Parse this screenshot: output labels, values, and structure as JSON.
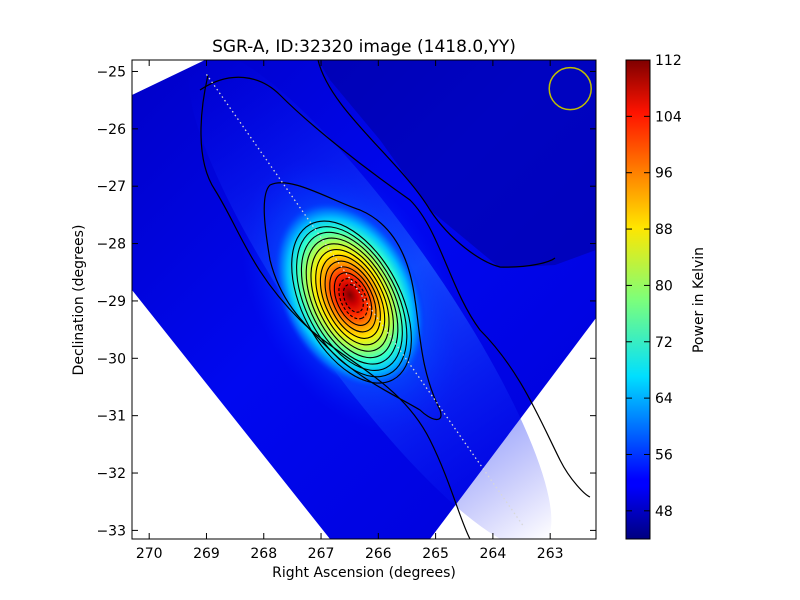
{
  "chart_data": {
    "type": "heatmap",
    "title": "SGR-A, ID:32320 image (1418.0,YY)",
    "xlabel": "Right Ascension (degrees)",
    "ylabel": "Declination (degrees)",
    "xlim": [
      270.3,
      262.2
    ],
    "ylim": [
      -33.15,
      -24.8
    ],
    "x_ticks": [
      270,
      269,
      268,
      267,
      266,
      265,
      264,
      263
    ],
    "y_ticks": [
      -25,
      -26,
      -27,
      -28,
      -29,
      -30,
      -31,
      -32,
      -33
    ],
    "colorbar": {
      "label": "Power in Kelvin",
      "min": 44,
      "max": 112,
      "ticks": [
        48,
        56,
        64,
        72,
        80,
        88,
        96,
        104,
        112
      ],
      "colormap": "jet"
    },
    "peak": {
      "ra": 266.45,
      "dec": -28.95,
      "value": 112
    },
    "background_level": 48,
    "beam": {
      "ra": 262.65,
      "dec": -25.3,
      "color": "#bfbf00"
    },
    "scan_path": {
      "start": [
        269.0,
        -25.05
      ],
      "end": [
        263.45,
        -32.95
      ]
    },
    "contour_rings": 12
  }
}
